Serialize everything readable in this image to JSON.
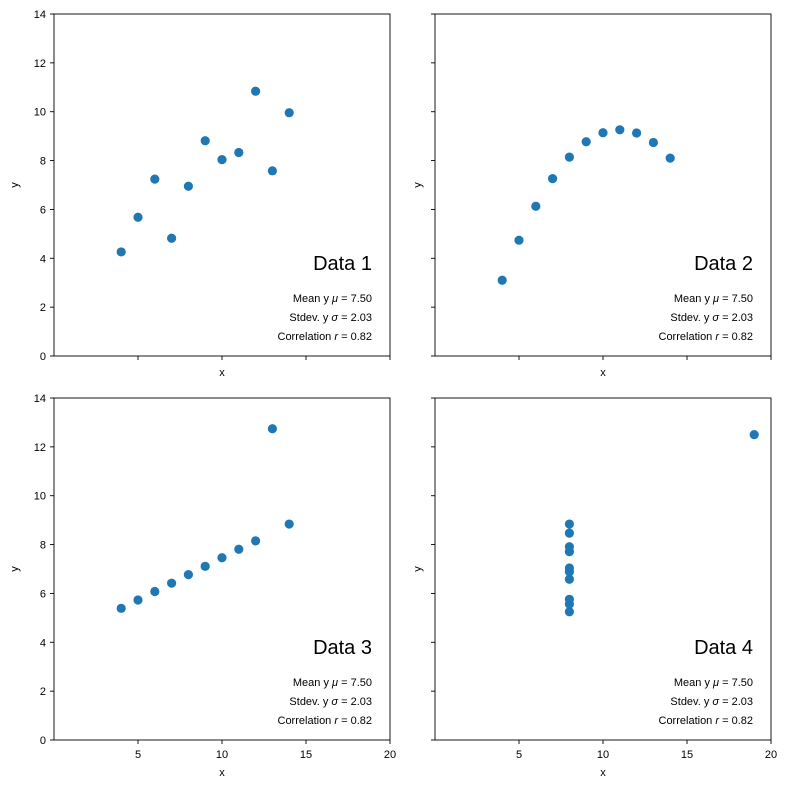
{
  "chart_data": [
    {
      "type": "scatter",
      "title": "Data 1",
      "xlabel": "x",
      "ylabel": "y",
      "xlim": [
        0,
        20
      ],
      "ylim": [
        0,
        14
      ],
      "xticks": [
        5,
        10,
        15,
        20
      ],
      "yticks": [
        0,
        2,
        4,
        6,
        8,
        10,
        12,
        14
      ],
      "x": [
        10,
        8,
        13,
        9,
        11,
        14,
        6,
        4,
        12,
        7,
        5
      ],
      "y": [
        8.04,
        6.95,
        7.58,
        8.81,
        8.33,
        9.96,
        7.24,
        4.26,
        10.84,
        4.82,
        5.68
      ],
      "stats": {
        "mean": "Mean y μ = 7.50",
        "stdev": "Stdev. y σ = 2.03",
        "corr": "Correlation r = 0.82"
      }
    },
    {
      "type": "scatter",
      "title": "Data 2",
      "xlabel": "x",
      "ylabel": "y",
      "xlim": [
        0,
        20
      ],
      "ylim": [
        0,
        14
      ],
      "xticks": [
        5,
        10,
        15,
        20
      ],
      "yticks": [
        0,
        2,
        4,
        6,
        8,
        10,
        12,
        14
      ],
      "x": [
        10,
        8,
        13,
        9,
        11,
        14,
        6,
        4,
        12,
        7,
        5
      ],
      "y": [
        9.14,
        8.14,
        8.74,
        8.77,
        9.26,
        8.1,
        6.13,
        3.1,
        9.13,
        7.26,
        4.74
      ],
      "stats": {
        "mean": "Mean y μ = 7.50",
        "stdev": "Stdev. y σ = 2.03",
        "corr": "Correlation r = 0.82"
      }
    },
    {
      "type": "scatter",
      "title": "Data 3",
      "xlabel": "x",
      "ylabel": "y",
      "xlim": [
        0,
        20
      ],
      "ylim": [
        0,
        14
      ],
      "xticks": [
        5,
        10,
        15,
        20
      ],
      "yticks": [
        0,
        2,
        4,
        6,
        8,
        10,
        12,
        14
      ],
      "x": [
        10,
        8,
        13,
        9,
        11,
        14,
        6,
        4,
        12,
        7,
        5
      ],
      "y": [
        7.46,
        6.77,
        12.74,
        7.11,
        7.81,
        8.84,
        6.08,
        5.39,
        8.15,
        6.42,
        5.73
      ],
      "stats": {
        "mean": "Mean y μ = 7.50",
        "stdev": "Stdev. y σ = 2.03",
        "corr": "Correlation r = 0.82"
      }
    },
    {
      "type": "scatter",
      "title": "Data 4",
      "xlabel": "x",
      "ylabel": "y",
      "xlim": [
        0,
        20
      ],
      "ylim": [
        0,
        14
      ],
      "xticks": [
        5,
        10,
        15,
        20
      ],
      "yticks": [
        0,
        2,
        4,
        6,
        8,
        10,
        12,
        14
      ],
      "x": [
        8,
        8,
        8,
        8,
        8,
        8,
        8,
        19,
        8,
        8,
        8
      ],
      "y": [
        6.58,
        5.76,
        7.71,
        8.84,
        8.47,
        7.04,
        5.25,
        12.5,
        5.56,
        7.91,
        6.89
      ],
      "stats": {
        "mean": "Mean y μ = 7.50",
        "stdev": "Stdev. y σ = 2.03",
        "corr": "Correlation r = 0.82"
      }
    }
  ],
  "colors": {
    "point": "#1f77b4",
    "axis": "#000000",
    "background": "#ffffff"
  }
}
